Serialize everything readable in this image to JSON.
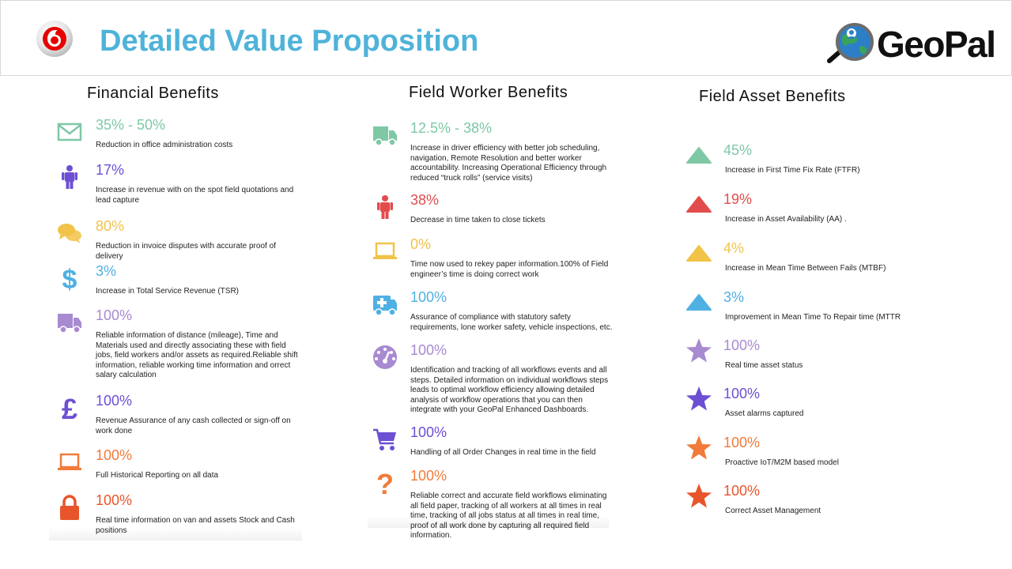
{
  "header": {
    "title": "Detailed Value Proposition",
    "logo_text": "GeoPal"
  },
  "columns": [
    {
      "heading": "Financial Benefits",
      "items": [
        {
          "icon": "envelope-icon",
          "color": "#7ec8a6",
          "value": "35% - 50%",
          "text": "Reduction in office administration costs"
        },
        {
          "icon": "person-icon",
          "color": "#6d4fd4",
          "value": "17%",
          "text": "Increase in revenue with on the spot field quotations and lead capture"
        },
        {
          "icon": "chat-bubbles-icon",
          "color": "#f1c348",
          "value": "80%",
          "text": "Reduction in invoice disputes with accurate proof of delivery"
        },
        {
          "icon": "dollar-icon",
          "color": "#4fb0e3",
          "value": "3%",
          "text": "Increase in Total Service Revenue (TSR)"
        },
        {
          "icon": "truck-icon",
          "color": "#a88ad0",
          "value": "100%",
          "text": "Reliable information of distance (mileage), Time and Materials used and directly associating these with field jobs, field workers and/or assets as required.Reliable shift information, reliable working time information and orrect salary calculation"
        },
        {
          "icon": "pound-icon",
          "color": "#6d4fd4",
          "value": "100%",
          "text": "Revenue Assurance of any cash collected or sign-off on work done"
        },
        {
          "icon": "laptop-icon",
          "color": "#f07b3a",
          "value": "100%",
          "text": "Full Historical Reporting on all data"
        },
        {
          "icon": "lock-icon",
          "color": "#e8552b",
          "value": "100%",
          "text": "Real time information on van and assets Stock and Cash positions"
        }
      ]
    },
    {
      "heading": "Field Worker Benefits",
      "items": [
        {
          "icon": "truck-icon",
          "color": "#7ec8a6",
          "value": "12.5% - 38%",
          "text": "Increase in driver efficiency with better job scheduling, navigation, Remote Resolution and better worker accountability. Increasing Operational Efficiency through reduced “truck rolls” (service visits)"
        },
        {
          "icon": "person-icon",
          "color": "#e34c4c",
          "value": "38%",
          "text": "Decrease in time taken to close tickets"
        },
        {
          "icon": "laptop-icon",
          "color": "#f1c348",
          "value": "0%",
          "text": "Time now used to rekey paper information.100% of Field engineer’s time is doing correct work"
        },
        {
          "icon": "ambulance-icon",
          "color": "#4fb0e3",
          "value": "100%",
          "text": "Assurance of compliance with statutory safety requirements, lone worker safety, vehicle inspections, etc."
        },
        {
          "icon": "dashboard-icon",
          "color": "#a88ad0",
          "value": "100%",
          "text": "Identification and tracking of all workflows events and all steps. Detailed information on individual workflows steps leads to optimal workflow efficiency allowing detailed analysis of workflow operations that you can then integrate with your GeoPal Enhanced Dashboards."
        },
        {
          "icon": "cart-icon",
          "color": "#6d4fd4",
          "value": "100%",
          "text": "Handling of all Order Changes in real time in the field"
        },
        {
          "icon": "question-icon",
          "color": "#f07b3a",
          "value": "100%",
          "text": "Reliable correct and accurate field workflows eliminating all field paper, tracking of all workers at all times in real time, tracking of all jobs status at all times in real time, proof of all work done by capturing all required field information."
        }
      ]
    },
    {
      "heading": "Field Asset Benefits",
      "items": [
        {
          "icon": "triangle-icon",
          "color": "#7ec8a6",
          "value": "45%",
          "text": "Increase in First Time Fix Rate (FTFR)"
        },
        {
          "icon": "triangle-icon",
          "color": "#e34c4c",
          "value": "19%",
          "text": "Increase in Asset Availability (AA) ."
        },
        {
          "icon": "triangle-icon",
          "color": "#f1c348",
          "value": "4%",
          "text": "Increase in Mean Time Between Fails (MTBF)"
        },
        {
          "icon": "triangle-icon",
          "color": "#4fb0e3",
          "value": "3%",
          "text": "Improvement in Mean Time To Repair time (MTTR"
        },
        {
          "icon": "star-icon",
          "color": "#a88ad0",
          "value": "100%",
          "text": "Real time asset status"
        },
        {
          "icon": "star-icon",
          "color": "#6d4fd4",
          "value": "100%",
          "text": "Asset alarms captured"
        },
        {
          "icon": "star-icon",
          "color": "#f07b3a",
          "value": "100%",
          "text": "Proactive IoT/M2M based model"
        },
        {
          "icon": "star-icon",
          "color": "#e8552b",
          "value": "100%",
          "text": "Correct Asset Management"
        }
      ]
    }
  ]
}
